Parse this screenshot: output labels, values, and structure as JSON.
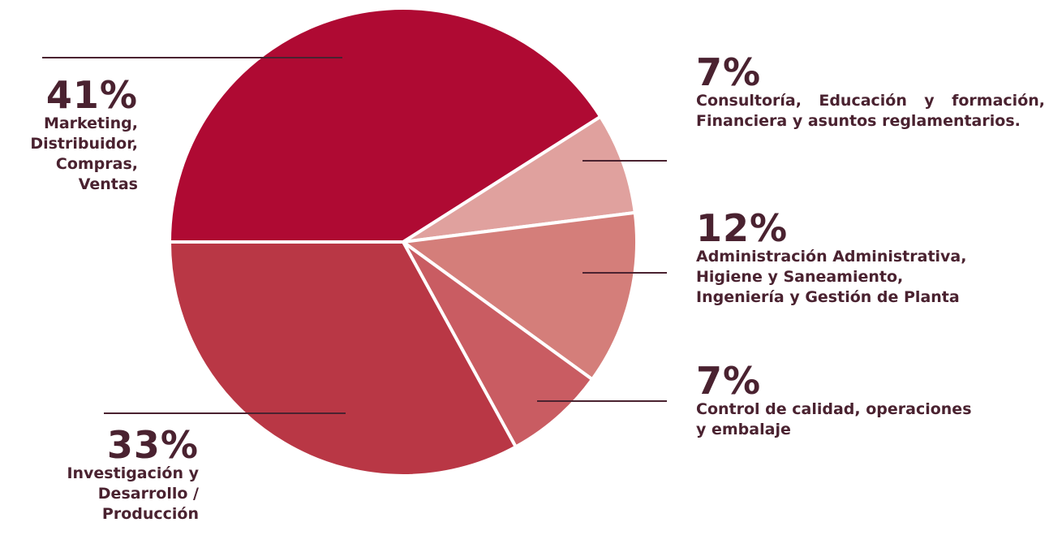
{
  "chart_data": {
    "type": "pie",
    "start_angle_deg": 180,
    "direction": "clockwise",
    "slices": [
      {
        "label": "Marketing, Distribuidor, Compras, Ventas",
        "value": 41,
        "percent_label": "41%",
        "color": "#AF0A33"
      },
      {
        "label": "Consultoría, Educación y formación, Financiera y asuntos reglamentarios.",
        "value": 7,
        "percent_label": "7%",
        "color": "#E0A19E"
      },
      {
        "label": "Administración Administrativa, Higiene y Saneamiento, Ingeniería y Gestión de Planta",
        "value": 12,
        "percent_label": "12%",
        "color": "#D47E7A"
      },
      {
        "label": "Control de calidad, operaciones y embalaje",
        "value": 7,
        "percent_label": "7%",
        "color": "#C95C62"
      },
      {
        "label": "Investigación y Desarrollo / Producción",
        "value": 33,
        "percent_label": "33%",
        "color": "#B93745"
      }
    ]
  },
  "callouts": {
    "marketing": {
      "percent": "41%",
      "lines": [
        "Marketing,",
        "Distribuidor,",
        "Compras,",
        "Ventas"
      ]
    },
    "consultoria": {
      "percent": "7%",
      "text": "Consultoría, Educación y formación, Financiera y asuntos reglamentarios."
    },
    "administracion": {
      "percent": "12%",
      "lines": [
        "Administración Administrativa,",
        "Higiene y Saneamiento,",
        "Ingeniería y Gestión de Planta"
      ]
    },
    "control": {
      "percent": "7%",
      "lines": [
        "Control de calidad, operaciones",
        "y embalaje"
      ]
    },
    "investigacion": {
      "percent": "33%",
      "lines": [
        "Investigación y",
        "Desarrollo /",
        "Producción"
      ]
    }
  },
  "colors": {
    "text": "#4A2230",
    "leader_line": "#4A2230",
    "separator": "#FFFFFF"
  }
}
